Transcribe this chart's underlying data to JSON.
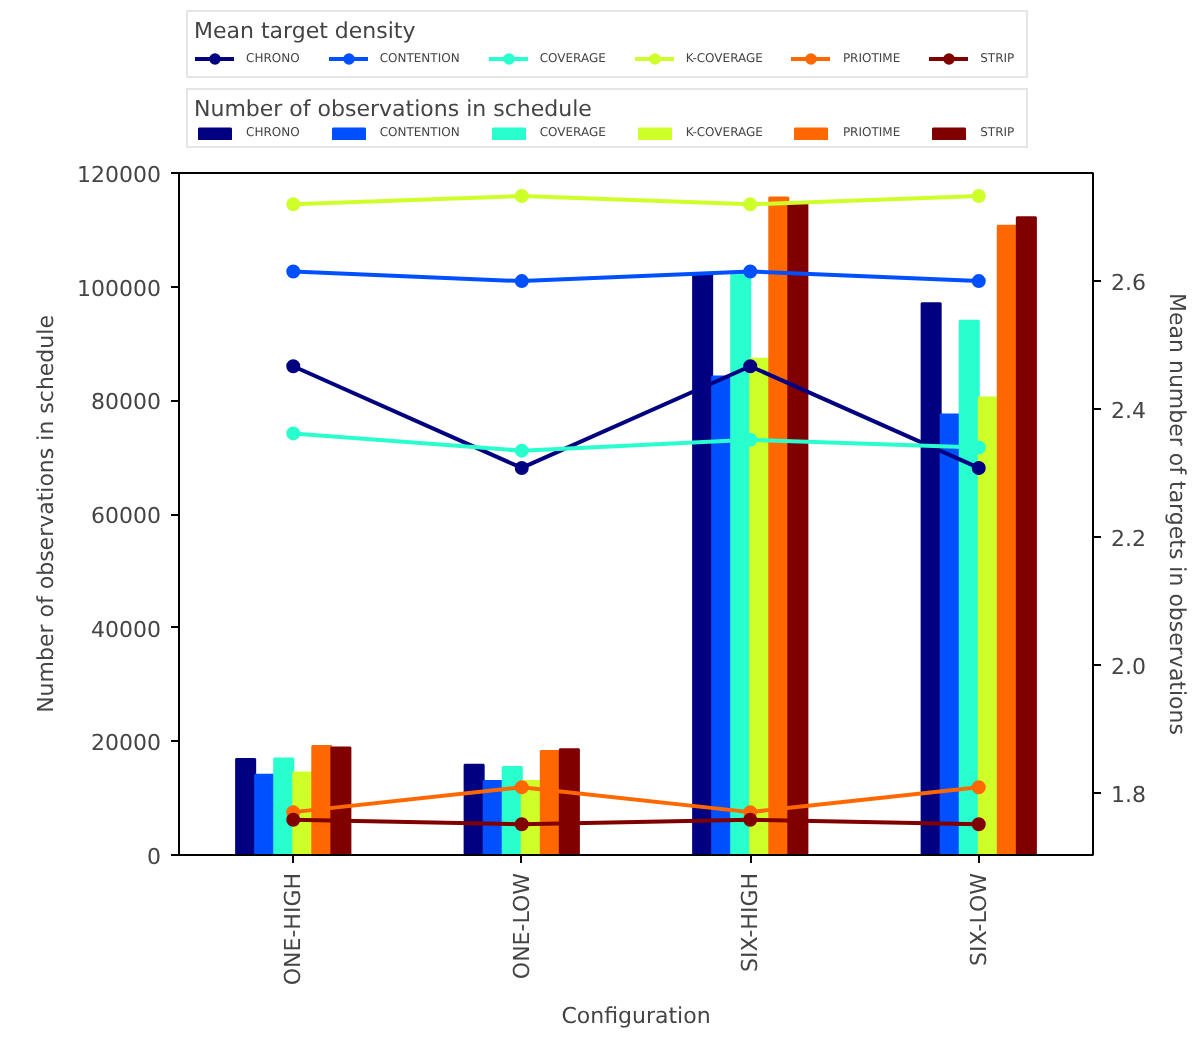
{
  "chart_data": {
    "type": "bar",
    "xlabel": "Configuration",
    "ylabel": "Number of observations in schedule",
    "y2label": "Mean number of targets in observations",
    "categories": [
      "ONE-HIGH",
      "ONE-LOW",
      "SIX-HIGH",
      "SIX-LOW"
    ],
    "ylim": [
      0,
      120000
    ],
    "yticks": [
      0,
      20000,
      40000,
      60000,
      80000,
      100000,
      120000
    ],
    "y2lim": [
      1.703,
      2.769
    ],
    "y2ticks": [
      {
        "value": 1.8,
        "label": "1.8"
      },
      {
        "value": 2.0,
        "label": "2.0"
      },
      {
        "value": 2.2,
        "label": "2.2"
      },
      {
        "value": 2.4,
        "label": "2.4"
      },
      {
        "value": 2.6,
        "label": "2.6"
      }
    ],
    "legend_title": "Number of observations in schedule",
    "annotations": [
      "Mean target density"
    ],
    "grid": false,
    "legend": "top",
    "marker": "circle",
    "line_style": "solid",
    "series": [
      {
        "name": "CHRONO",
        "color": "#000080",
        "values": [
          16900,
          15900,
          102400,
          97100
        ]
      },
      {
        "name": "CONTENTION",
        "color": "#0050ff",
        "values": [
          14100,
          13000,
          84200,
          77500
        ]
      },
      {
        "name": "COVERAGE",
        "color": "#29ffce",
        "values": [
          17000,
          15500,
          102400,
          94000
        ]
      },
      {
        "name": "K-COVERAGE",
        "color": "#ceff29",
        "values": [
          14500,
          13000,
          87300,
          80500
        ]
      },
      {
        "name": "PRIOTIME",
        "color": "#ff6800",
        "values": [
          19200,
          18300,
          115700,
          110700
        ]
      },
      {
        "name": "STRIP",
        "color": "#800000",
        "values": [
          18900,
          18600,
          114500,
          112200
        ]
      },
      {
        "type": "line",
        "axis": "y2",
        "name": "CHRONO",
        "color": "#000080",
        "values": [
          2.467,
          2.308,
          2.467,
          2.308
        ]
      },
      {
        "type": "line",
        "axis": "y2",
        "name": "CONTENTION",
        "color": "#0050ff",
        "values": [
          2.615,
          2.6,
          2.615,
          2.6
        ]
      },
      {
        "type": "line",
        "axis": "y2",
        "name": "COVERAGE",
        "color": "#29ffce",
        "values": [
          2.362,
          2.335,
          2.352,
          2.34
        ]
      },
      {
        "type": "line",
        "axis": "y2",
        "name": "K-COVERAGE",
        "color": "#ceff29",
        "values": [
          2.72,
          2.733,
          2.72,
          2.733
        ]
      },
      {
        "type": "line",
        "axis": "y2",
        "name": "PRIOTIME",
        "color": "#ff6800",
        "values": [
          1.77,
          1.809,
          1.77,
          1.809
        ]
      },
      {
        "type": "line",
        "axis": "y2",
        "name": "STRIP",
        "color": "#800000",
        "values": [
          1.758,
          1.751,
          1.758,
          1.751
        ]
      }
    ]
  }
}
